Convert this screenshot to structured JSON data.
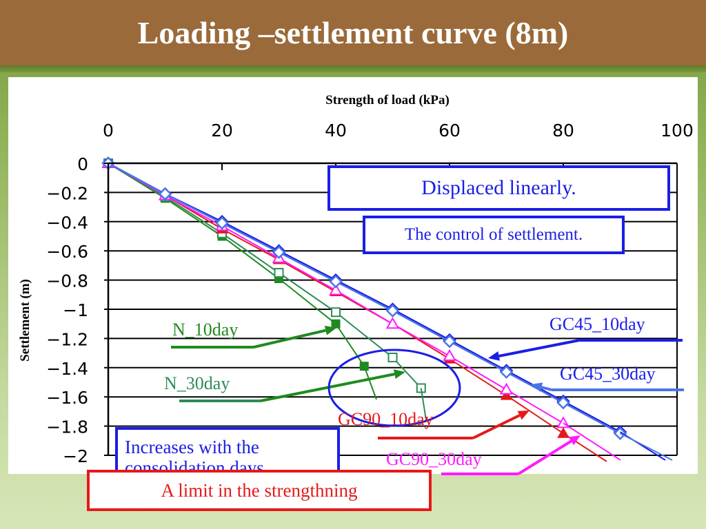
{
  "slide": {
    "title": "Loading –settlement curve (8m)"
  },
  "colors": {
    "title_bg": "#9a6a3a",
    "background_green": "#8fb257",
    "callout_blue": "#1a1ee6",
    "callout_red": "#e61919"
  },
  "annotations": {
    "displaced_linearly": "Displaced linearly.",
    "control_of_settlement": "The control of settlement.",
    "increases_with": "Increases with the consolidation days",
    "limit": "A limit in the strengthning"
  },
  "chart_data": {
    "type": "line",
    "xlabel": "Strength of load (kPa)",
    "ylabel": "Settlement (m)",
    "xlim": [
      0,
      100
    ],
    "ylim": [
      -2,
      0
    ],
    "x_axis_position": "top",
    "x_ticks": [
      0,
      20,
      40,
      60,
      80,
      100
    ],
    "y_ticks": [
      0,
      -0.2,
      -0.4,
      -0.6,
      -0.8,
      -1,
      -1.2,
      -1.4,
      -1.6,
      -1.8,
      -2
    ],
    "x_tick_labels": [
      "0",
      "20",
      "40",
      "60",
      "80",
      "100"
    ],
    "y_tick_labels": [
      "0",
      "−0.2",
      "−0.4",
      "−0.6",
      "−0.8",
      "−1",
      "−1.2",
      "−1.4",
      "−1.6",
      "−1.8",
      "−2"
    ],
    "grid": "horizontal",
    "series": [
      {
        "name": "N_10day",
        "color": "#1f8a1f",
        "marker": "filled-square",
        "x": [
          0,
          10,
          20,
          30,
          40,
          45
        ],
        "y": [
          0,
          -0.24,
          -0.5,
          -0.79,
          -1.1,
          -1.39
        ]
      },
      {
        "name": "N_30day",
        "color": "#2e8b57",
        "marker": "open-square",
        "x": [
          0,
          10,
          20,
          30,
          40,
          50,
          55
        ],
        "y": [
          0,
          -0.23,
          -0.48,
          -0.75,
          -1.02,
          -1.33,
          -1.54
        ]
      },
      {
        "name": "GC90_10day",
        "color": "#e61919",
        "marker": "filled-triangle",
        "x": [
          0,
          10,
          20,
          30,
          40,
          50,
          60,
          70,
          80
        ],
        "y": [
          0,
          -0.22,
          -0.45,
          -0.66,
          -0.88,
          -1.1,
          -1.34,
          -1.59,
          -1.85
        ]
      },
      {
        "name": "GC90_30day",
        "color": "#ff1aff",
        "marker": "open-triangle",
        "x": [
          0,
          10,
          20,
          30,
          40,
          50,
          60,
          70,
          80
        ],
        "y": [
          0,
          -0.22,
          -0.43,
          -0.65,
          -0.87,
          -1.1,
          -1.32,
          -1.55,
          -1.78
        ]
      },
      {
        "name": "GC45_10day",
        "color": "#1a1ee6",
        "marker": "open-diamond",
        "x": [
          0,
          10,
          20,
          30,
          40,
          50,
          60,
          70,
          80,
          90
        ],
        "y": [
          0,
          -0.21,
          -0.4,
          -0.6,
          -0.8,
          -1.0,
          -1.21,
          -1.42,
          -1.63,
          -1.84
        ]
      },
      {
        "name": "GC45_30day",
        "color": "#4a74e8",
        "marker": "open-diamond",
        "x": [
          0,
          10,
          20,
          30,
          40,
          50,
          60,
          70,
          80,
          90
        ],
        "y": [
          0,
          -0.21,
          -0.41,
          -0.61,
          -0.81,
          -1.01,
          -1.22,
          -1.43,
          -1.64,
          -1.85
        ]
      }
    ]
  }
}
